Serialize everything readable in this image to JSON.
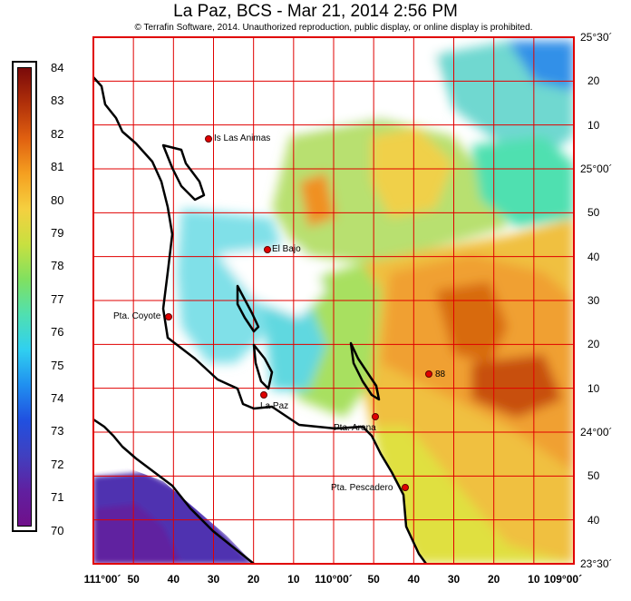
{
  "header": {
    "title": "La Paz, BCS - Mar 21, 2014 2:56 PM",
    "copyright": "© Terrafin Software,  2014.  Unauthorized reproduction, public display, or online display is prohibited."
  },
  "colorbar": {
    "labels": [
      "84",
      "83",
      "82",
      "81",
      "80",
      "79",
      "78",
      "77",
      "76",
      "75",
      "74",
      "73",
      "72",
      "71",
      "70"
    ],
    "min": 70,
    "max": 84,
    "colors": [
      "#7a0a0a",
      "#b0300a",
      "#e06010",
      "#f5a020",
      "#f5d040",
      "#c8e040",
      "#80e060",
      "#50e0b0",
      "#30d0f0",
      "#2090f0",
      "#2050e0",
      "#4040c0",
      "#6020a0",
      "#70108a"
    ]
  },
  "map": {
    "lat_labels": [
      "25°30´",
      "20",
      "10",
      "25°00´",
      "50",
      "40",
      "30",
      "20",
      "10",
      "24°00´",
      "50",
      "40",
      "23°30´"
    ],
    "lon_labels": [
      "111°00´",
      "50",
      "40",
      "30",
      "20",
      "10",
      "110°00´",
      "50",
      "40",
      "30",
      "20",
      "10",
      "109°00´"
    ],
    "grid_color": "#e00000",
    "coast_color": "#000000",
    "places": [
      {
        "name": "Is Las Animas"
      },
      {
        "name": "El Bajo"
      },
      {
        "name": "Pta. Coyote"
      },
      {
        "name": "La Paz"
      },
      {
        "name": "Pta. Arena"
      },
      {
        "name": "Pta. Pescadero"
      },
      {
        "name": "88"
      }
    ]
  }
}
